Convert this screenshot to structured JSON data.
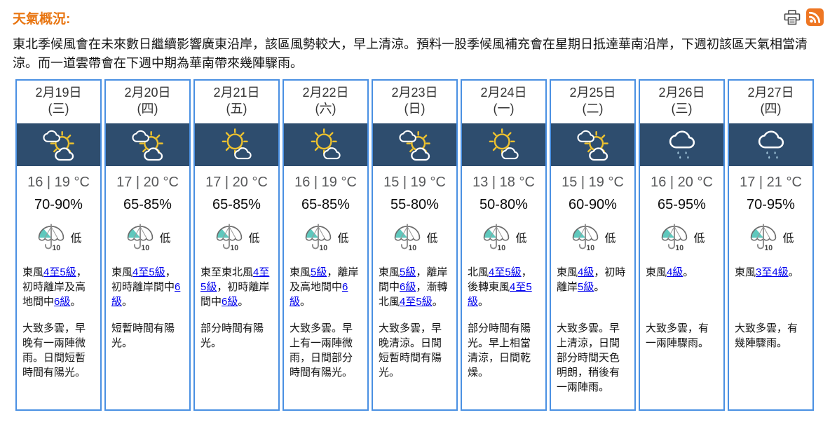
{
  "page": {
    "title": "天氣概況:",
    "summary": "東北季候風會在未來數日繼續影響廣東沿岸，該區風勢較大，早上清涼。預料一股季候風補充會在星期日抵達華南沿岸，下週初該區天氣相當清涼。而一道雲帶會在下週中期為華南帶來幾陣驟雨。"
  },
  "toolbar": {
    "icons": [
      "printer-icon",
      "rss-icon"
    ]
  },
  "colors": {
    "accent_orange": "#e87511",
    "card_border": "#4a90e2",
    "banner_bg": "#2e4d6e",
    "sun_yellow": "#ecc12f",
    "cloud_white": "#ffffff",
    "rain_drop": "#a4c8dc",
    "psr_teal": "#5fc8bd",
    "link_blue": "#0000EE",
    "rss_orange": "#ee7623",
    "temp_gray": "#58595b"
  },
  "forecast": {
    "cards": [
      {
        "date": "2月19日",
        "weekday": "(三)",
        "icon": "partly-cloudy",
        "temp": "16 | 19 °C",
        "humidity": "70-90%",
        "psr": "低",
        "wind": "東風[4至5級]，初時離岸及高地間中[6級]。",
        "weather": "大致多雲，早晚有一兩陣微雨。日間短暫時間有陽光。"
      },
      {
        "date": "2月20日",
        "weekday": "(四)",
        "icon": "partly-cloudy",
        "temp": "17 | 20 °C",
        "humidity": "65-85%",
        "psr": "低",
        "wind": "東風[4至5級]，初時離岸間中[6級]。",
        "weather": "短暫時間有陽光。"
      },
      {
        "date": "2月21日",
        "weekday": "(五)",
        "icon": "sunny-intervals",
        "temp": "17 | 20 °C",
        "humidity": "65-85%",
        "psr": "低",
        "wind": "東至東北風[4至5級]，初時離岸間中[6級]。",
        "weather": "部分時間有陽光。"
      },
      {
        "date": "2月22日",
        "weekday": "(六)",
        "icon": "sunny-intervals",
        "temp": "16 | 19 °C",
        "humidity": "65-85%",
        "psr": "低",
        "wind": "東風[5級]，離岸及高地間中[6級]。",
        "weather": "大致多雲。早上有一兩陣微雨，日間部分時間有陽光。"
      },
      {
        "date": "2月23日",
        "weekday": "(日)",
        "icon": "partly-cloudy",
        "temp": "15 | 19 °C",
        "humidity": "55-80%",
        "psr": "低",
        "wind": "東風[5級]，離岸間中[6級]，漸轉北風[4至5級]。",
        "weather": "大致多雲，早晚清涼。日間短暫時間有陽光。"
      },
      {
        "date": "2月24日",
        "weekday": "(一)",
        "icon": "sunny-intervals",
        "temp": "13 | 18 °C",
        "humidity": "50-80%",
        "psr": "低",
        "wind": "北風[4至5級]，後轉東風[4至5級]。",
        "weather": "部分時間有陽光。早上相當清涼，日間乾燥。"
      },
      {
        "date": "2月25日",
        "weekday": "(二)",
        "icon": "partly-cloudy",
        "temp": "15 | 19 °C",
        "humidity": "60-90%",
        "psr": "低",
        "wind": "東風[4級]，初時離岸[5級]。",
        "weather": "大致多雲。早上清涼，日間部分時間天色明朗，稍後有一兩陣雨。"
      },
      {
        "date": "2月26日",
        "weekday": "(三)",
        "icon": "light-rain",
        "temp": "16 | 20 °C",
        "humidity": "65-95%",
        "psr": "低",
        "wind": "東風[4級]。",
        "weather": "大致多雲，有一兩陣驟雨。"
      },
      {
        "date": "2月27日",
        "weekday": "(四)",
        "icon": "light-rain",
        "temp": "17 | 21 °C",
        "humidity": "70-95%",
        "psr": "低",
        "wind": "東風[3至4級]。",
        "weather": "大致多雲，有幾陣驟雨。"
      }
    ]
  }
}
